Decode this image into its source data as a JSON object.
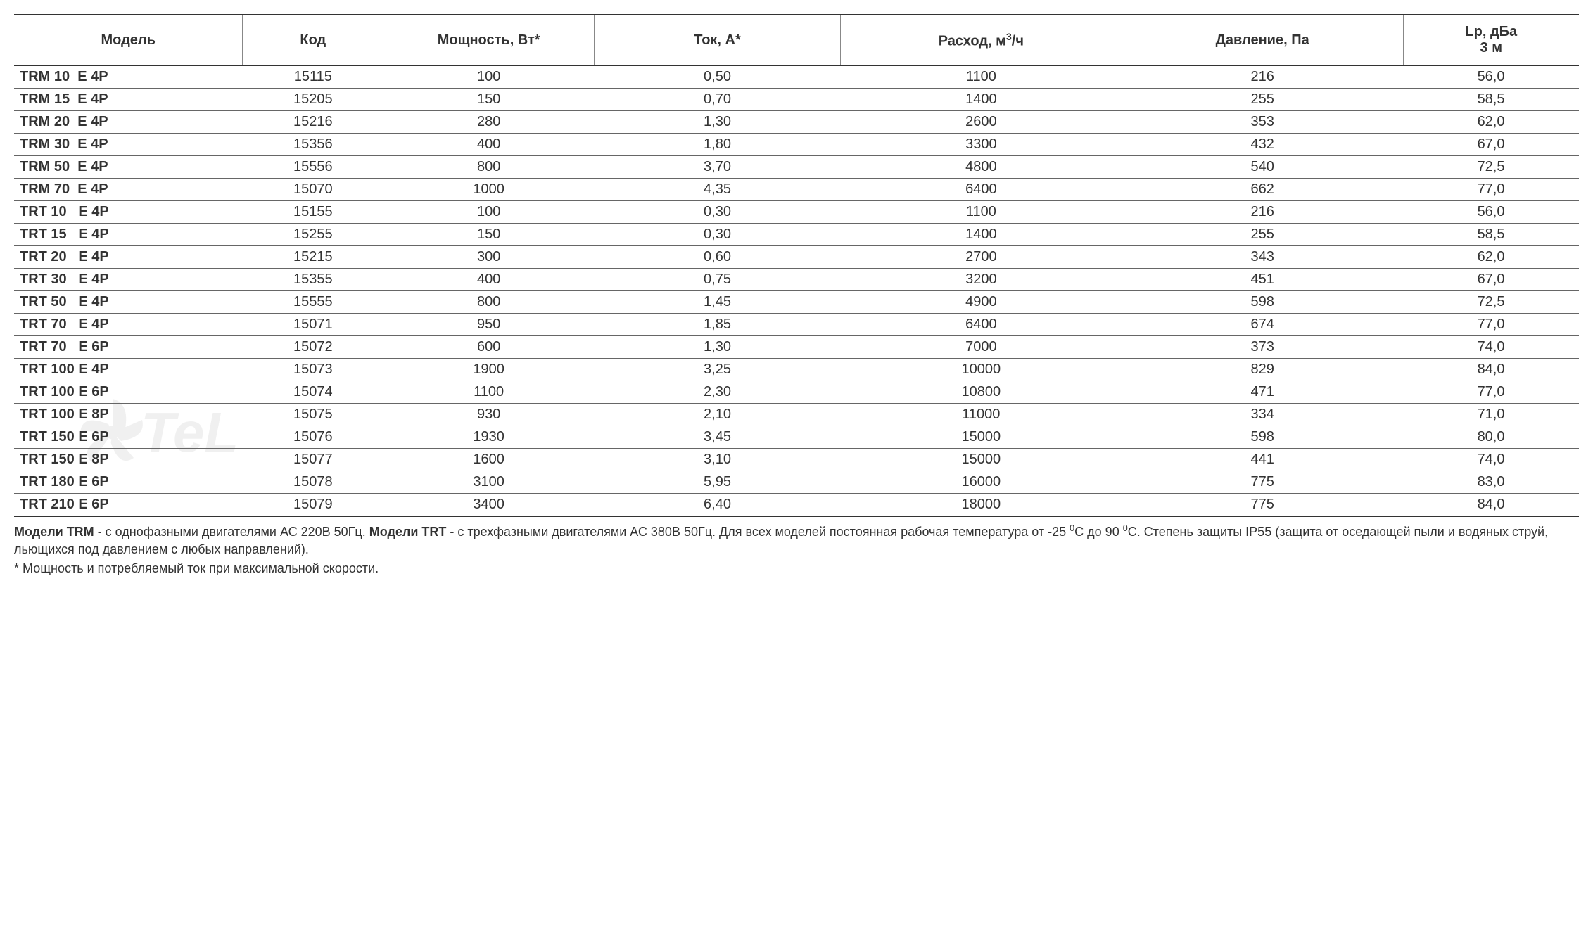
{
  "table": {
    "columns": [
      {
        "key": "model",
        "label": "Модель",
        "width": "13%",
        "align": "left",
        "bold": true
      },
      {
        "key": "code",
        "label": "Код",
        "width": "8%",
        "align": "center"
      },
      {
        "key": "power",
        "label": "Мощность, Вт*",
        "width": "12%",
        "align": "center"
      },
      {
        "key": "current",
        "label": "Ток, А*",
        "width": "14%",
        "align": "center"
      },
      {
        "key": "flow",
        "label_html": "Расход, м<sup>3</sup>/ч",
        "width": "16%",
        "align": "center"
      },
      {
        "key": "pressure",
        "label": "Давление, Па",
        "width": "16%",
        "align": "center"
      },
      {
        "key": "noise",
        "label_html": "Lp, дБа<br>3 м",
        "width": "10%",
        "align": "center"
      }
    ],
    "rows": [
      {
        "model": "TRM 10  E 4P",
        "code": "15115",
        "power": "100",
        "current": "0,50",
        "flow": "1100",
        "pressure": "216",
        "noise": "56,0"
      },
      {
        "model": "TRM 15  E 4P",
        "code": "15205",
        "power": "150",
        "current": "0,70",
        "flow": "1400",
        "pressure": "255",
        "noise": "58,5"
      },
      {
        "model": "TRM 20  E 4P",
        "code": "15216",
        "power": "280",
        "current": "1,30",
        "flow": "2600",
        "pressure": "353",
        "noise": "62,0"
      },
      {
        "model": "TRM 30  E 4P",
        "code": "15356",
        "power": "400",
        "current": "1,80",
        "flow": "3300",
        "pressure": "432",
        "noise": "67,0"
      },
      {
        "model": "TRM 50  E 4P",
        "code": "15556",
        "power": "800",
        "current": "3,70",
        "flow": "4800",
        "pressure": "540",
        "noise": "72,5"
      },
      {
        "model": "TRM 70  E 4P",
        "code": "15070",
        "power": "1000",
        "current": "4,35",
        "flow": "6400",
        "pressure": "662",
        "noise": "77,0"
      },
      {
        "model": "TRT 10   E 4P",
        "code": "15155",
        "power": "100",
        "current": "0,30",
        "flow": "1100",
        "pressure": "216",
        "noise": "56,0"
      },
      {
        "model": "TRT 15   E 4P",
        "code": "15255",
        "power": "150",
        "current": "0,30",
        "flow": "1400",
        "pressure": "255",
        "noise": "58,5"
      },
      {
        "model": "TRT 20   E 4P",
        "code": "15215",
        "power": "300",
        "current": "0,60",
        "flow": "2700",
        "pressure": "343",
        "noise": "62,0"
      },
      {
        "model": "TRT 30   E 4P",
        "code": "15355",
        "power": "400",
        "current": "0,75",
        "flow": "3200",
        "pressure": "451",
        "noise": "67,0"
      },
      {
        "model": "TRT 50   E 4P",
        "code": "15555",
        "power": "800",
        "current": "1,45",
        "flow": "4900",
        "pressure": "598",
        "noise": "72,5"
      },
      {
        "model": "TRT 70   E 4P",
        "code": "15071",
        "power": "950",
        "current": "1,85",
        "flow": "6400",
        "pressure": "674",
        "noise": "77,0"
      },
      {
        "model": "TRT 70   E 6P",
        "code": "15072",
        "power": "600",
        "current": "1,30",
        "flow": "7000",
        "pressure": "373",
        "noise": "74,0"
      },
      {
        "model": "TRT 100 E 4P",
        "code": "15073",
        "power": "1900",
        "current": "3,25",
        "flow": "10000",
        "pressure": "829",
        "noise": "84,0"
      },
      {
        "model": "TRT 100 E 6P",
        "code": "15074",
        "power": "1100",
        "current": "2,30",
        "flow": "10800",
        "pressure": "471",
        "noise": "77,0"
      },
      {
        "model": "TRT 100 E 8P",
        "code": "15075",
        "power": "930",
        "current": "2,10",
        "flow": "11000",
        "pressure": "334",
        "noise": "71,0"
      },
      {
        "model": "TRT 150 E 6P",
        "code": "15076",
        "power": "1930",
        "current": "3,45",
        "flow": "15000",
        "pressure": "598",
        "noise": "80,0"
      },
      {
        "model": "TRT 150 E 8P",
        "code": "15077",
        "power": "1600",
        "current": "3,10",
        "flow": "15000",
        "pressure": "441",
        "noise": "74,0"
      },
      {
        "model": "TRT 180 E 6P",
        "code": "15078",
        "power": "3100",
        "current": "5,95",
        "flow": "16000",
        "pressure": "775",
        "noise": "83,0"
      },
      {
        "model": "TRT 210 E 6P",
        "code": "15079",
        "power": "3400",
        "current": "6,40",
        "flow": "18000",
        "pressure": "775",
        "noise": "84,0"
      }
    ],
    "border_color": "#333333",
    "row_border_color": "#666666",
    "header_fontsize": 20,
    "cell_fontsize": 20,
    "background_color": "#ffffff"
  },
  "notes": {
    "line1_html": "<strong>Модели TRM</strong> - с однофазными двигателями АС 220В 50Гц. <strong>Модели TRT</strong> - с трехфазными двигателями АС 380В 50Гц. Для всех моделей постоянная рабочая температура от -25 <sup>0</sup>С до 90 <sup>0</sup>С. Степень защиты IP55 (защита от оседающей пыли и водяных струй, льющихся под давлением с любых направлений).",
    "line2": "* Мощность и потребляемый ток при максимальной скорости.",
    "fontsize": 18,
    "text_color": "#333333"
  },
  "watermark": {
    "text": "TeL",
    "opacity": 0.12,
    "color": "#888888"
  }
}
